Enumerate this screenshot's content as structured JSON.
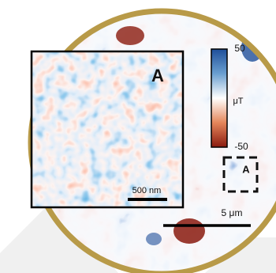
{
  "inset": {
    "label": "A",
    "scale_bar": "500 nm"
  },
  "colorbar": {
    "max": 50,
    "unit": "μT",
    "min": -50
  },
  "region_label": "A",
  "scale_bar": "5 μm"
}
